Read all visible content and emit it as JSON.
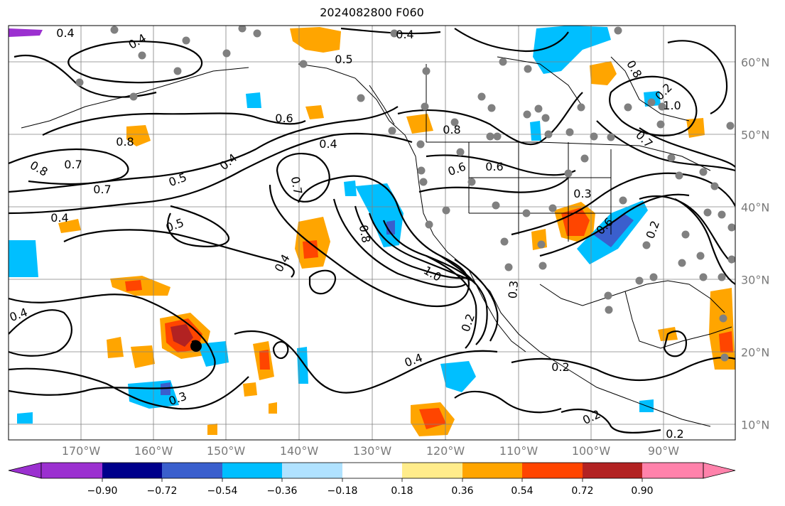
{
  "title": "2024082800 F060",
  "lon_labels": [
    "170°W",
    "160°W",
    "150°W",
    "140°W",
    "130°W",
    "120°W",
    "110°W",
    "100°W",
    "90°W"
  ],
  "lat_labels": [
    "60°N",
    "50°N",
    "40°N",
    "30°N",
    "20°N",
    "10°N"
  ],
  "contour_labels": [
    "0.4",
    "0.4",
    "0.5",
    "0.6",
    "0.8",
    "0.4",
    "0.8",
    "0.7",
    "0.7",
    "0.4",
    "0.5",
    "0.5",
    "0.4",
    "0.7",
    "0.8",
    "1.0",
    "0.4",
    "0.8",
    "0.6",
    "0.6",
    "0.3",
    "0.6",
    "0.2",
    "0.8",
    "0.2",
    "1.0",
    "0.7",
    "0.3",
    "0.2",
    "0.4",
    "0.4",
    "0.3",
    "0.2",
    "0.2",
    "0.2",
    "0.4"
  ],
  "colorbar": {
    "ticks": [
      "−0.90",
      "−0.72",
      "−0.54",
      "−0.36",
      "−0.18",
      "0.18",
      "0.36",
      "0.54",
      "0.72",
      "0.90"
    ],
    "colors": [
      "#9b30d0",
      "#00008b",
      "#3a5fcd",
      "#00bfff",
      "#b0e2ff",
      "#ffffff",
      "#ffec8b",
      "#ffa500",
      "#ff4500",
      "#b22222",
      "#ff82ab"
    ]
  },
  "colors": {
    "contour": "#000000",
    "gridline": "#808080",
    "station_dot": "#808080",
    "axis_label": "#7a7a7a"
  }
}
